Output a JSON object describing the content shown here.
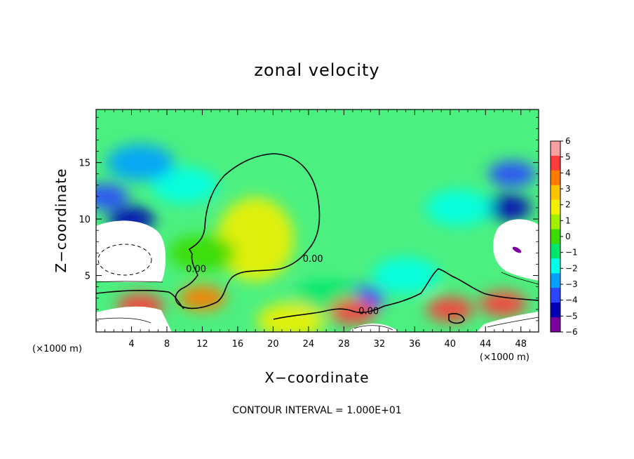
{
  "chart_data": {
    "type": "heatmap",
    "title": "zonal velocity",
    "xlabel": "X−coordinate",
    "ylabel": "Z−coordinate",
    "x_unit_label": "(×1000 m)",
    "x_unit_label_right": "(×1000 m)",
    "footer": "CONTOUR INTERVAL = 1.000E+01",
    "xlim": [
      0,
      50
    ],
    "ylim": [
      0,
      19.7
    ],
    "x_ticks": [
      {
        "v": 4,
        "label": "4"
      },
      {
        "v": 8,
        "label": "8"
      },
      {
        "v": 12,
        "label": "12"
      },
      {
        "v": 16,
        "label": "16"
      },
      {
        "v": 20,
        "label": "20"
      },
      {
        "v": 24,
        "label": "24"
      },
      {
        "v": 28,
        "label": "28"
      },
      {
        "v": 32,
        "label": "32"
      },
      {
        "v": 36,
        "label": "36"
      },
      {
        "v": 40,
        "label": "40"
      },
      {
        "v": 44,
        "label": "44"
      },
      {
        "v": 48,
        "label": "48"
      }
    ],
    "y_ticks": [
      {
        "v": 5,
        "label": "5"
      },
      {
        "v": 10,
        "label": "10"
      },
      {
        "v": 15,
        "label": "15"
      }
    ],
    "colorbar": {
      "levels": [
        6,
        5,
        4,
        3,
        2,
        1,
        0,
        -1,
        -2,
        -3,
        -4,
        -5,
        -6
      ],
      "labels": [
        "6",
        "5",
        "4",
        "3",
        "2",
        "1",
        "0",
        "−1",
        "−2",
        "−3",
        "−4",
        "−5",
        "−6"
      ],
      "colors": [
        "#f8a0a0",
        "#ff3c3c",
        "#ff7a00",
        "#ffc400",
        "#f0f000",
        "#a0f000",
        "#3cdc00",
        "#00e66e",
        "#00ffe6",
        "#00a0ff",
        "#2a46ff",
        "#0000b4",
        "#7a00a0"
      ]
    },
    "contour_labels": [
      {
        "text": "0.00",
        "x": 11.3,
        "z": 5.3
      },
      {
        "text": "0.00",
        "x": 24.5,
        "z": 6.2
      },
      {
        "text": "0.00",
        "x": 30.8,
        "z": 1.6
      }
    ],
    "features": [
      {
        "kind": "max",
        "x": 18,
        "z": 8.2,
        "value": 1.8
      },
      {
        "kind": "region",
        "x": 10,
        "z": 13,
        "value": -2
      },
      {
        "kind": "region",
        "x": 5,
        "z": 15,
        "value": -3.5
      },
      {
        "kind": "region",
        "x": 1,
        "z": 12,
        "value": -4.5
      },
      {
        "kind": "region",
        "x": 4,
        "z": 10,
        "value": -5.5
      },
      {
        "kind": "region",
        "x": 46.5,
        "z": 11,
        "value": -5.5
      },
      {
        "kind": "region",
        "x": 47,
        "z": 14,
        "value": -4.5
      },
      {
        "kind": "region",
        "x": 41,
        "z": 11,
        "value": -2.5
      },
      {
        "kind": "region",
        "x": 30,
        "z": 3,
        "value": -4
      },
      {
        "kind": "region",
        "x": 35,
        "z": 5,
        "value": -2.5
      },
      {
        "kind": "region",
        "x": 26,
        "z": 3,
        "value": -1
      },
      {
        "kind": "region",
        "x": 12,
        "z": 7,
        "value": -0.5
      },
      {
        "kind": "region",
        "x": 12,
        "z": 3,
        "value": 4
      },
      {
        "kind": "region",
        "x": 5,
        "z": 2.3,
        "value": 5
      },
      {
        "kind": "region",
        "x": 29,
        "z": 1.8,
        "value": 4.5
      },
      {
        "kind": "region",
        "x": 40,
        "z": 2,
        "value": 4.5
      },
      {
        "kind": "region",
        "x": 46,
        "z": 2.5,
        "value": 5
      },
      {
        "kind": "region",
        "x": 22,
        "z": 1,
        "value": 1.5
      }
    ]
  }
}
